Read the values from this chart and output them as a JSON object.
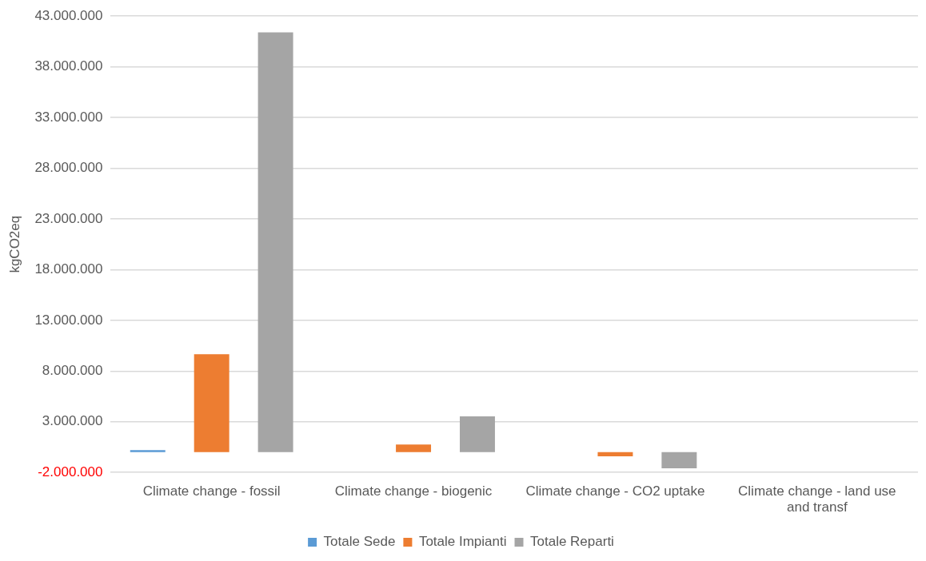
{
  "chart_data": {
    "type": "bar",
    "ylabel": "kgCO2eq",
    "categories": [
      "Climate change - fossil",
      "Climate change - biogenic",
      "Climate change - CO2 uptake",
      "Climate change - land use and transf"
    ],
    "series": [
      {
        "name": "Totale Sede",
        "color": "#5b9bd5",
        "values": [
          200000,
          0,
          0,
          0
        ]
      },
      {
        "name": "Totale Impianti",
        "color": "#ed7d31",
        "values": [
          9650000,
          760000,
          -400000,
          0
        ]
      },
      {
        "name": "Totale Reparti",
        "color": "#a5a5a5",
        "values": [
          41400000,
          3530000,
          -1600000,
          0
        ]
      }
    ],
    "ylim": [
      -2000000,
      43000000
    ],
    "yticks": [
      {
        "value": -2000000,
        "label": "-2.000.000"
      },
      {
        "value": 3000000,
        "label": "3.000.000"
      },
      {
        "value": 8000000,
        "label": "8.000.000"
      },
      {
        "value": 13000000,
        "label": "13.000.000"
      },
      {
        "value": 18000000,
        "label": "18.000.000"
      },
      {
        "value": 23000000,
        "label": "23.000.000"
      },
      {
        "value": 28000000,
        "label": "28.000.000"
      },
      {
        "value": 33000000,
        "label": "33.000.000"
      },
      {
        "value": 38000000,
        "label": "38.000.000"
      },
      {
        "value": 43000000,
        "label": "43.000.000"
      }
    ],
    "grid": "y",
    "legend": "bottom"
  }
}
